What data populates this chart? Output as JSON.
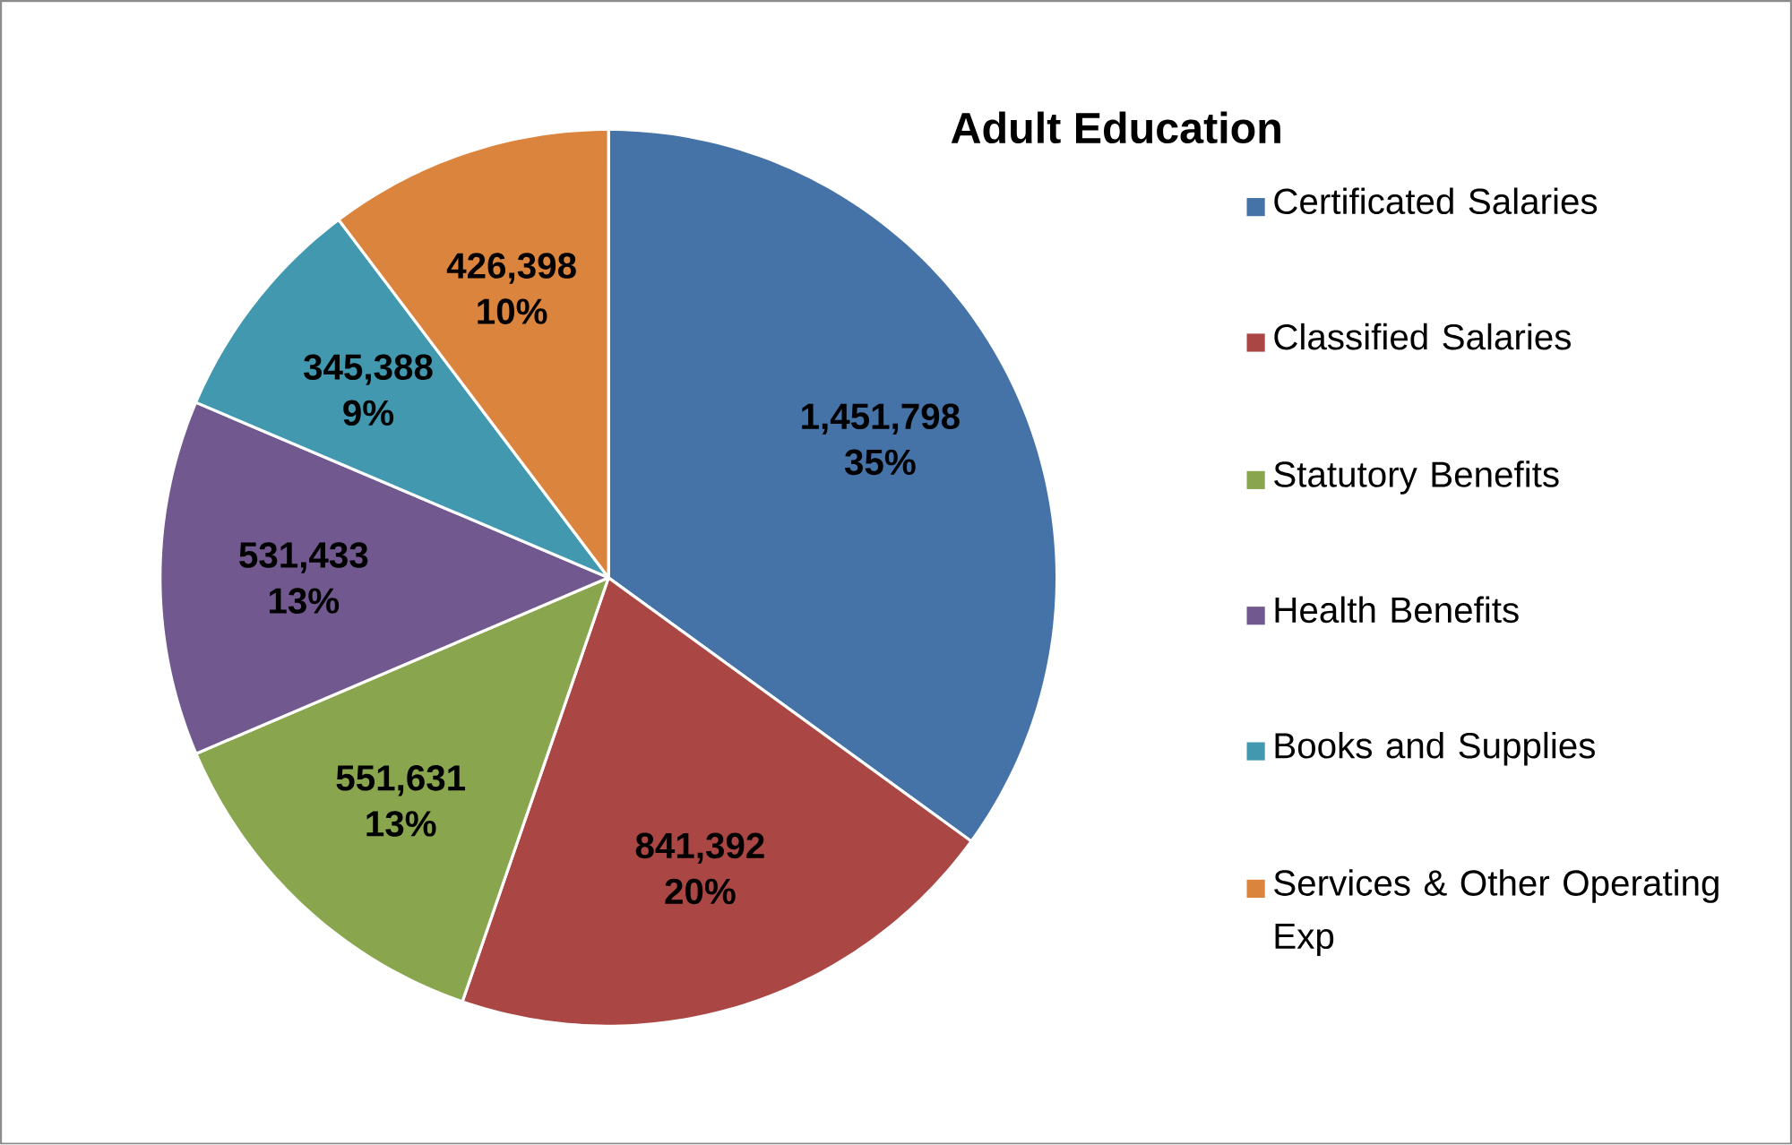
{
  "chart_data": {
    "type": "pie",
    "title": "Adult Education",
    "categories": [
      "Certificated Salaries",
      "Classified Salaries",
      "Statutory Benefits",
      "Health Benefits",
      "Books and Supplies",
      "Services & Other Operating Exp"
    ],
    "values": [
      1451798,
      841392,
      551631,
      531433,
      345388,
      426398
    ],
    "colors": [
      "#4572a7",
      "#aa4643",
      "#89a54e",
      "#71588f",
      "#4198af",
      "#db843d"
    ],
    "value_labels": [
      "1,451,798 35%",
      "841,392 20%",
      "551,631 13%",
      "531,433 13%",
      "345,388 9%",
      "426,398 10%"
    ],
    "legend": "right"
  }
}
